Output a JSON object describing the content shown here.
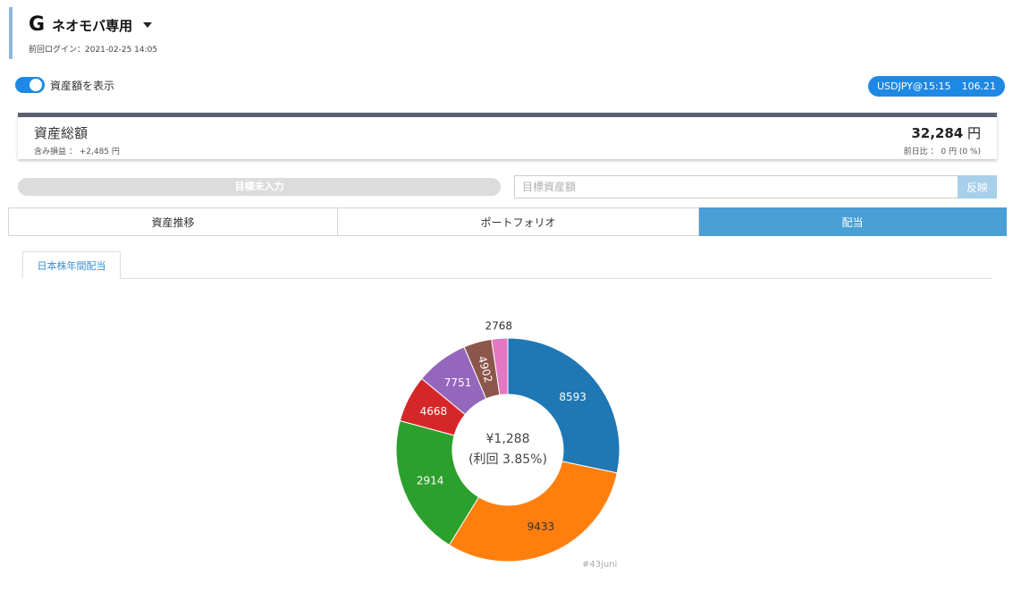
{
  "header": {
    "logo": "G",
    "account_name": "ネオモバ専用",
    "last_login": "前回ログイン：2021-02-25 14:05"
  },
  "toggle": {
    "label": "資産額を表示",
    "on": true
  },
  "fx": {
    "pair": "USDJPY@15:15",
    "rate": "106.21"
  },
  "total": {
    "title": "資産総額",
    "sub": "含み損益 ： +2,485 円",
    "value": "32,284",
    "unit": " 円",
    "change": "前日比 ： 0 円 (0 %)"
  },
  "goal": {
    "bar_label": "目標未入力",
    "input_placeholder": "目標資産額",
    "apply_label": "反映"
  },
  "tabs": [
    {
      "label": "資産推移",
      "active": false
    },
    {
      "label": "ポートフォリオ",
      "active": false
    },
    {
      "label": "配当",
      "active": true
    }
  ],
  "sub_tab": {
    "label": "日本株年間配当"
  },
  "chart_data": {
    "type": "pie",
    "donut": true,
    "categories": [
      "8593",
      "9433",
      "2914",
      "4668",
      "7751",
      "4902",
      "2768"
    ],
    "values": [
      0.279,
      0.3,
      0.201,
      0.067,
      0.075,
      0.04,
      0.023
    ],
    "colors": [
      "#1f77b4",
      "#ff7f0e",
      "#2ca02c",
      "#d62728",
      "#9467bd",
      "#8c564b",
      "#e377c2"
    ],
    "center_amount": "¥1,288",
    "center_yield": "(利回 3.85%)",
    "watermark": "#43juni"
  }
}
